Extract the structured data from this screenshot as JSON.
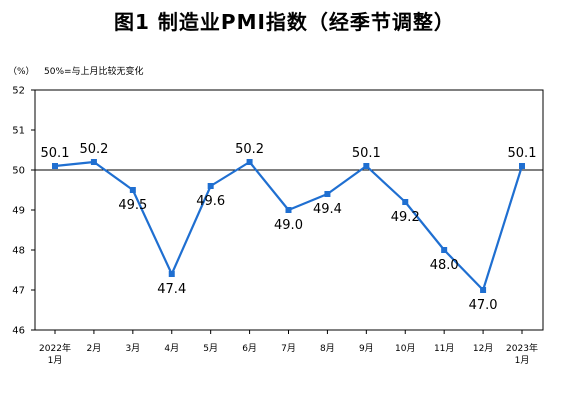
{
  "chart_data": {
    "type": "line",
    "title": "图1 制造业PMI指数（经季节调整）",
    "unit_label": "（%）",
    "note": "50%=与上月比较无变化",
    "categories": [
      [
        "2022年",
        "1月"
      ],
      [
        "2月"
      ],
      [
        "3月"
      ],
      [
        "4月"
      ],
      [
        "5月"
      ],
      [
        "6月"
      ],
      [
        "7月"
      ],
      [
        "8月"
      ],
      [
        "9月"
      ],
      [
        "10月"
      ],
      [
        "11月"
      ],
      [
        "12月"
      ],
      [
        "2023年",
        "1月"
      ]
    ],
    "series": [
      {
        "values": [
          50.1,
          50.2,
          49.5,
          47.4,
          49.6,
          50.2,
          49.0,
          49.4,
          50.1,
          49.2,
          48.0,
          47.0,
          50.1
        ],
        "data_labels": [
          "50.1",
          "50.2",
          "49.5",
          "47.4",
          "49.6",
          "50.2",
          "49.0",
          "49.4",
          "50.1",
          "49.2",
          "48.0",
          "47.0",
          "50.1"
        ],
        "color": "#1f6fd1"
      }
    ],
    "ylim": [
      46,
      52
    ],
    "yticks": [
      46,
      47,
      48,
      49,
      50,
      51,
      52
    ],
    "reference_line": 50,
    "grid": false,
    "legend": "none"
  }
}
